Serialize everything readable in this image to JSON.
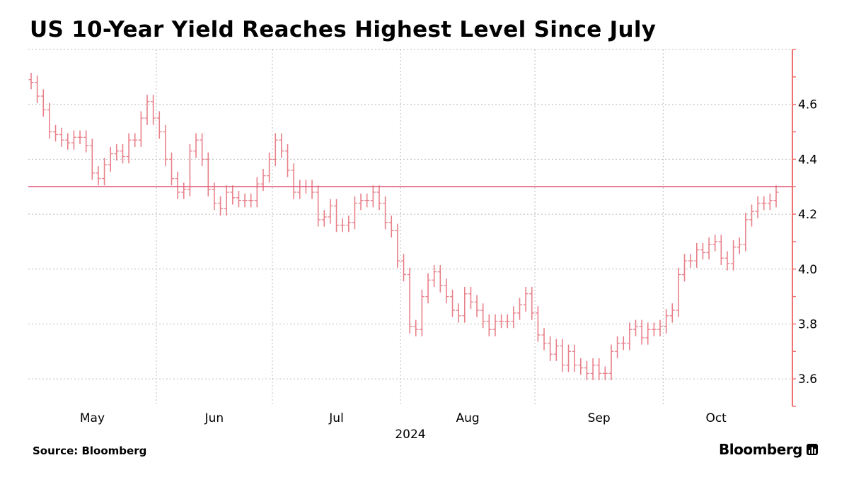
{
  "chart_data": {
    "type": "ohlc",
    "title": "US 10-Year Yield Reaches Highest Level Since July",
    "source": "Source: Bloomberg",
    "brand": "Bloomberg",
    "xlabel": "2024",
    "ylabel": "",
    "ylim": [
      3.5,
      4.8
    ],
    "yticks": [
      3.6,
      3.8,
      4.0,
      4.2,
      4.4,
      4.6
    ],
    "ytick_labels": [
      "3.6",
      "3.8",
      "4.0",
      "4.2",
      "4.4",
      "4.6"
    ],
    "y_axis_side": "right",
    "grid": true,
    "reference_line": 4.3,
    "months": [
      {
        "label": "May",
        "bars": 21
      },
      {
        "label": "Jun",
        "bars": 19
      },
      {
        "label": "Jul",
        "bars": 21
      },
      {
        "label": "Aug",
        "bars": 22
      },
      {
        "label": "Sep",
        "bars": 21
      },
      {
        "label": "Oct",
        "bars": 19
      }
    ],
    "close": [
      4.68,
      4.63,
      4.58,
      4.5,
      4.49,
      4.47,
      4.46,
      4.48,
      4.48,
      4.45,
      4.35,
      4.33,
      4.38,
      4.42,
      4.43,
      4.41,
      4.47,
      4.47,
      4.55,
      4.61,
      4.55,
      4.5,
      4.4,
      4.33,
      4.28,
      4.29,
      4.43,
      4.47,
      4.4,
      4.29,
      4.24,
      4.22,
      4.28,
      4.26,
      4.25,
      4.25,
      4.25,
      4.31,
      4.34,
      4.4,
      4.47,
      4.43,
      4.36,
      4.28,
      4.3,
      4.3,
      4.28,
      4.18,
      4.19,
      4.23,
      4.16,
      4.16,
      4.17,
      4.24,
      4.25,
      4.25,
      4.28,
      4.24,
      4.17,
      4.14,
      4.03,
      3.98,
      3.79,
      3.78,
      3.9,
      3.96,
      3.99,
      3.94,
      3.9,
      3.85,
      3.83,
      3.91,
      3.88,
      3.85,
      3.81,
      3.78,
      3.81,
      3.81,
      3.81,
      3.84,
      3.87,
      3.91,
      3.84,
      3.76,
      3.73,
      3.69,
      3.72,
      3.65,
      3.7,
      3.65,
      3.64,
      3.62,
      3.65,
      3.62,
      3.62,
      3.7,
      3.73,
      3.73,
      3.78,
      3.79,
      3.75,
      3.78,
      3.78,
      3.79,
      3.83,
      3.85,
      3.98,
      4.03,
      4.03,
      4.07,
      4.06,
      4.09,
      4.1,
      4.04,
      4.02,
      4.08,
      4.09,
      4.18,
      4.21,
      4.24,
      4.24,
      4.25,
      4.28
    ],
    "colors": {
      "bar": "#e8808a",
      "reference": "#e05a78",
      "axis": "#f07070",
      "grid": "#bbbbbb"
    }
  }
}
